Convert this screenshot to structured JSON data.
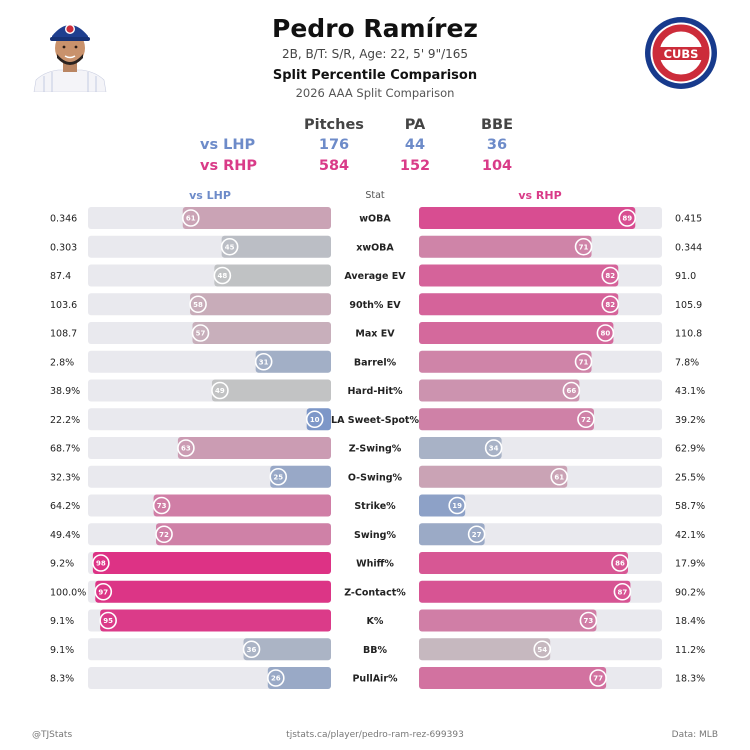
{
  "header": {
    "name": "Pedro Ramírez",
    "bio": "2B, B/T: S/R, Age: 22, 5' 9\"/165",
    "title": "Split Percentile Comparison",
    "subtitle": "2026 AAA Split Comparison",
    "logo_text": "CUBS"
  },
  "summary": {
    "headers": [
      "Pitches",
      "PA",
      "BBE"
    ],
    "rows": [
      {
        "label": "vs LHP",
        "values": [
          "176",
          "44",
          "36"
        ]
      },
      {
        "label": "vs RHP",
        "values": [
          "584",
          "152",
          "104"
        ]
      }
    ]
  },
  "columns": {
    "left": "vs LHP",
    "stat": "Stat",
    "right": "vs RHP"
  },
  "colors": {
    "lhp_label": "#6d8bc9",
    "rhp_label": "#d93b88",
    "high": "#de2c82",
    "mid": "#c4c4c4",
    "low": "#6b8cc9",
    "track": "#e9e9ee"
  },
  "chart_data": {
    "type": "bar",
    "xlim": [
      0,
      100
    ],
    "series_names": [
      "vs LHP",
      "vs RHP"
    ],
    "rows": [
      {
        "stat": "wOBA",
        "lhp_value": "0.346",
        "lhp_pct": 61,
        "rhp_value": "0.415",
        "rhp_pct": 89
      },
      {
        "stat": "xwOBA",
        "lhp_value": "0.303",
        "lhp_pct": 45,
        "rhp_value": "0.344",
        "rhp_pct": 71
      },
      {
        "stat": "Average EV",
        "lhp_value": "87.4",
        "lhp_pct": 48,
        "rhp_value": "91.0",
        "rhp_pct": 82
      },
      {
        "stat": "90th% EV",
        "lhp_value": "103.6",
        "lhp_pct": 58,
        "rhp_value": "105.9",
        "rhp_pct": 82
      },
      {
        "stat": "Max EV",
        "lhp_value": "108.7",
        "lhp_pct": 57,
        "rhp_value": "110.8",
        "rhp_pct": 80
      },
      {
        "stat": "Barrel%",
        "lhp_value": "2.8%",
        "lhp_pct": 31,
        "rhp_value": "7.8%",
        "rhp_pct": 71
      },
      {
        "stat": "Hard-Hit%",
        "lhp_value": "38.9%",
        "lhp_pct": 49,
        "rhp_value": "43.1%",
        "rhp_pct": 66
      },
      {
        "stat": "LA Sweet-Spot%",
        "lhp_value": "22.2%",
        "lhp_pct": 10,
        "rhp_value": "39.2%",
        "rhp_pct": 72
      },
      {
        "stat": "Z-Swing%",
        "lhp_value": "68.7%",
        "lhp_pct": 63,
        "rhp_value": "62.9%",
        "rhp_pct": 34
      },
      {
        "stat": "O-Swing%",
        "lhp_value": "32.3%",
        "lhp_pct": 25,
        "rhp_value": "25.5%",
        "rhp_pct": 61
      },
      {
        "stat": "Strike%",
        "lhp_value": "64.2%",
        "lhp_pct": 73,
        "rhp_value": "58.7%",
        "rhp_pct": 19
      },
      {
        "stat": "Swing%",
        "lhp_value": "49.4%",
        "lhp_pct": 72,
        "rhp_value": "42.1%",
        "rhp_pct": 27
      },
      {
        "stat": "Whiff%",
        "lhp_value": "9.2%",
        "lhp_pct": 98,
        "rhp_value": "17.9%",
        "rhp_pct": 86
      },
      {
        "stat": "Z-Contact%",
        "lhp_value": "100.0%",
        "lhp_pct": 97,
        "rhp_value": "90.2%",
        "rhp_pct": 87
      },
      {
        "stat": "K%",
        "lhp_value": "9.1%",
        "lhp_pct": 95,
        "rhp_value": "18.4%",
        "rhp_pct": 73
      },
      {
        "stat": "BB%",
        "lhp_value": "9.1%",
        "lhp_pct": 36,
        "rhp_value": "11.2%",
        "rhp_pct": 54
      },
      {
        "stat": "PullAir%",
        "lhp_value": "8.3%",
        "lhp_pct": 26,
        "rhp_value": "18.3%",
        "rhp_pct": 77
      }
    ]
  },
  "footer": {
    "left": "@TJStats",
    "center": "tjstats.ca/player/pedro-ram-rez-699393",
    "right": "Data: MLB"
  }
}
